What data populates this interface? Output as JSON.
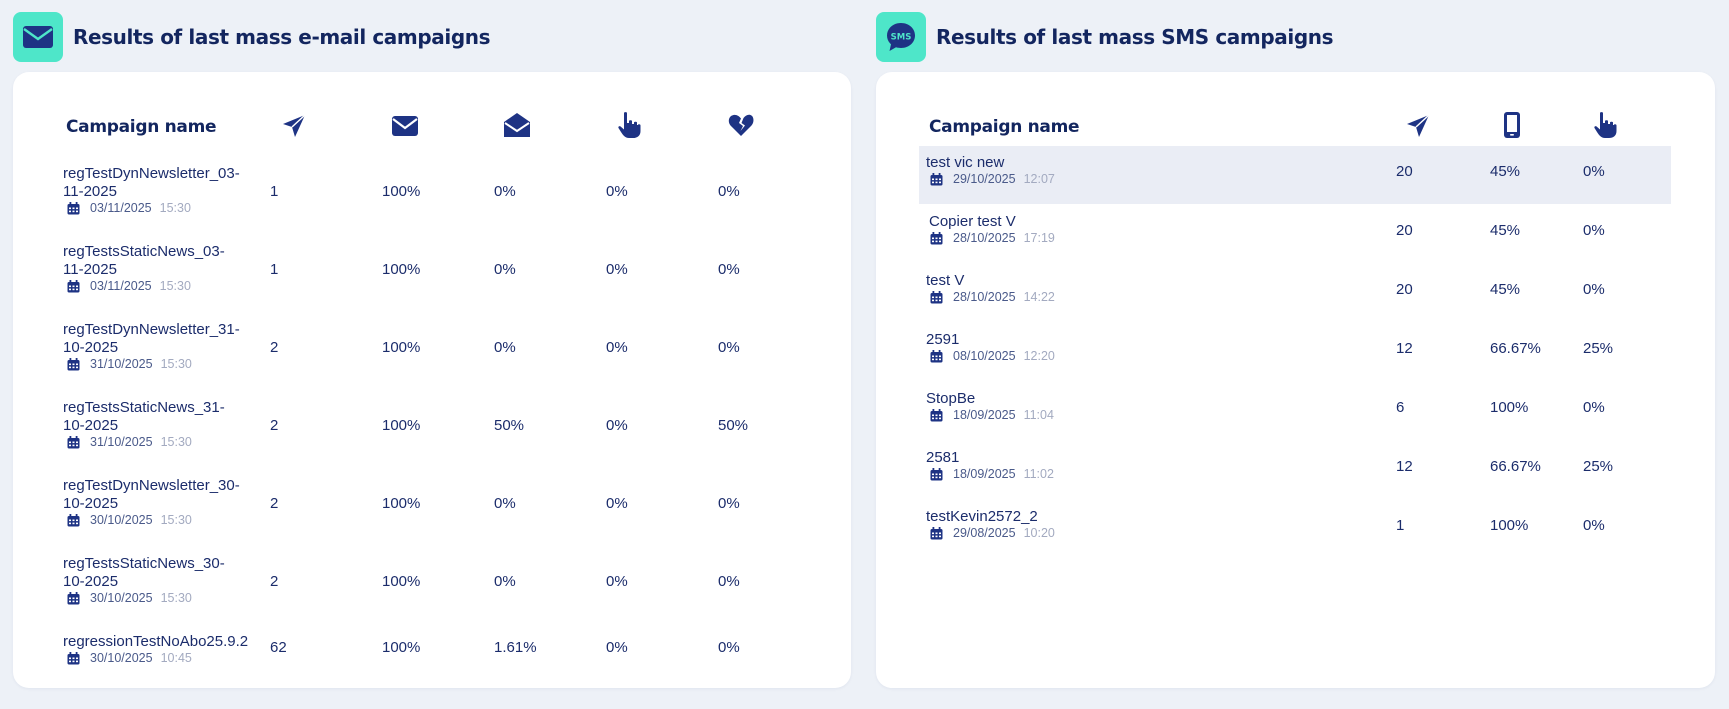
{
  "email": {
    "title": "Results of last mass e-mail campaigns",
    "header_icon": "envelope-icon",
    "column_header": "Campaign name",
    "column_icons": [
      "paper-plane-icon",
      "envelope-icon",
      "envelope-open-icon",
      "hand-pointer-icon",
      "broken-heart-icon"
    ],
    "rows": [
      {
        "name_line1": "regTestDynNewsletter_03-",
        "name_line2": "11-2025",
        "date": "03/11/2025",
        "time": "15:30",
        "sent": "1",
        "delivered": "100%",
        "opened": "0%",
        "clicked": "0%",
        "bounced": "0%"
      },
      {
        "name_line1": "regTestsStaticNews_03-",
        "name_line2": "11-2025",
        "date": "03/11/2025",
        "time": "15:30",
        "sent": "1",
        "delivered": "100%",
        "opened": "0%",
        "clicked": "0%",
        "bounced": "0%"
      },
      {
        "name_line1": "regTestDynNewsletter_31-",
        "name_line2": "10-2025",
        "date": "31/10/2025",
        "time": "15:30",
        "sent": "2",
        "delivered": "100%",
        "opened": "0%",
        "clicked": "0%",
        "bounced": "0%"
      },
      {
        "name_line1": "regTestsStaticNews_31-",
        "name_line2": "10-2025",
        "date": "31/10/2025",
        "time": "15:30",
        "sent": "2",
        "delivered": "100%",
        "opened": "50%",
        "clicked": "0%",
        "bounced": "50%"
      },
      {
        "name_line1": "regTestDynNewsletter_30-",
        "name_line2": "10-2025",
        "date": "30/10/2025",
        "time": "15:30",
        "sent": "2",
        "delivered": "100%",
        "opened": "0%",
        "clicked": "0%",
        "bounced": "0%"
      },
      {
        "name_line1": "regTestsStaticNews_30-",
        "name_line2": "10-2025",
        "date": "30/10/2025",
        "time": "15:30",
        "sent": "2",
        "delivered": "100%",
        "opened": "0%",
        "clicked": "0%",
        "bounced": "0%"
      },
      {
        "name_line1": "regressionTestNoAbo25.9.2",
        "name_line2": "",
        "date": "30/10/2025",
        "time": "10:45",
        "sent": "62",
        "delivered": "100%",
        "opened": "1.61%",
        "clicked": "0%",
        "bounced": "0%"
      }
    ]
  },
  "sms": {
    "title": "Results of last mass SMS campaigns",
    "header_icon": "sms-bubble-icon",
    "header_icon_text": "SMS",
    "column_header": "Campaign name",
    "column_icons": [
      "paper-plane-icon",
      "mobile-phone-icon",
      "hand-pointer-icon"
    ],
    "rows": [
      {
        "name": "test vic new",
        "date": "29/10/2025",
        "time": "12:07",
        "sent": "20",
        "delivered": "45%",
        "clicked": "0%",
        "highlighted": true
      },
      {
        "name": "Copier test V",
        "date": "28/10/2025",
        "time": "17:19",
        "sent": "20",
        "delivered": "45%",
        "clicked": "0%"
      },
      {
        "name": "test V",
        "date": "28/10/2025",
        "time": "14:22",
        "sent": "20",
        "delivered": "45%",
        "clicked": "0%"
      },
      {
        "name": "2591",
        "date": "08/10/2025",
        "time": "12:20",
        "sent": "12",
        "delivered": "66.67%",
        "clicked": "25%"
      },
      {
        "name": "StopBe",
        "date": "18/09/2025",
        "time": "11:04",
        "sent": "6",
        "delivered": "100%",
        "clicked": "0%"
      },
      {
        "name": "2581",
        "date": "18/09/2025",
        "time": "11:02",
        "sent": "12",
        "delivered": "66.67%",
        "clicked": "25%"
      },
      {
        "name": "testKevin2572_2",
        "date": "29/08/2025",
        "time": "10:20",
        "sent": "1",
        "delivered": "100%",
        "clicked": "0%"
      }
    ]
  },
  "colors": {
    "background": "#edf1f7",
    "accent": "#4ee6c9",
    "primary_text": "#1b2c6b",
    "icon": "#1e3384",
    "highlight_row": "#eaedf5"
  }
}
